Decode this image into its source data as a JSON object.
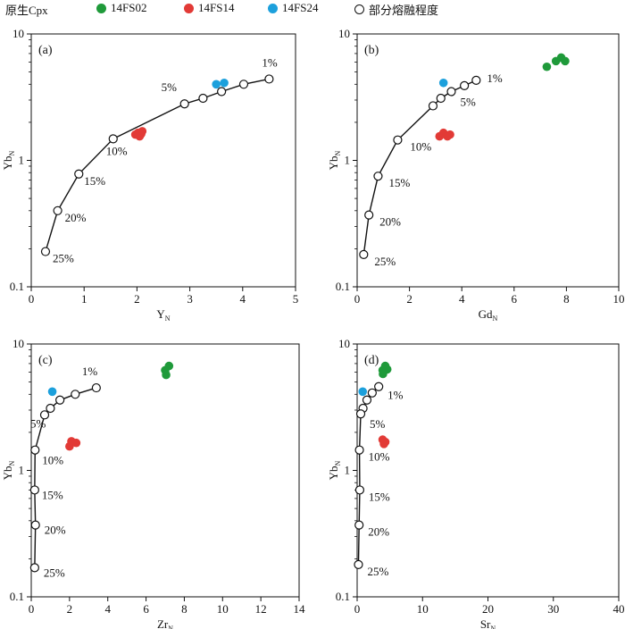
{
  "legend": {
    "cpx_label": "原生Cpx",
    "items": [
      {
        "label": "14FS02",
        "color": "#1f9a3a",
        "marker": "filled-circle"
      },
      {
        "label": "14FS14",
        "color": "#e23a36",
        "marker": "filled-circle"
      },
      {
        "label": "14FS24",
        "color": "#1ca0dc",
        "marker": "filled-circle"
      },
      {
        "label": "部分熔融程度",
        "color": "#111111",
        "marker": "open-circle"
      }
    ]
  },
  "chart_data": [
    {
      "panel": "(a)",
      "type": "scatter",
      "ylog": true,
      "xlabel": "Y",
      "xlabel_sub": "N",
      "ylabel": "Yb",
      "ylabel_sub": "N",
      "xlim": [
        0,
        5
      ],
      "ylim": [
        0.1,
        10
      ],
      "xticks": [
        "0",
        "1",
        "2",
        "3",
        "4",
        "5"
      ],
      "yticks": [
        "0.1",
        "1",
        "10"
      ],
      "melting_curve": {
        "x": [
          4.5,
          4.02,
          3.6,
          3.25,
          2.9,
          1.55,
          0.9,
          0.5,
          0.27
        ],
        "y": [
          4.4,
          4.0,
          3.5,
          3.1,
          2.8,
          1.48,
          0.78,
          0.4,
          0.19
        ],
        "labels": [
          {
            "i": 0,
            "text": "1%"
          },
          {
            "i": 4,
            "text": "5%"
          },
          {
            "i": 5,
            "text": "10%"
          },
          {
            "i": 6,
            "text": "15%"
          },
          {
            "i": 7,
            "text": "20%"
          },
          {
            "i": 8,
            "text": "25%"
          }
        ]
      },
      "series": [
        {
          "name": "14FS02",
          "points": []
        },
        {
          "name": "14FS14",
          "points": [
            [
              1.97,
              1.6
            ],
            [
              2.05,
              1.55
            ],
            [
              2.1,
              1.7
            ],
            [
              2.02,
              1.65
            ],
            [
              2.08,
              1.62
            ]
          ]
        },
        {
          "name": "14FS24",
          "points": [
            [
              3.5,
              4.0
            ],
            [
              3.65,
              4.1
            ]
          ]
        }
      ]
    },
    {
      "panel": "(b)",
      "type": "scatter",
      "ylog": true,
      "xlabel": "Gd",
      "xlabel_sub": "N",
      "ylabel": "Yb",
      "ylabel_sub": "N",
      "xlim": [
        0,
        10
      ],
      "ylim": [
        0.1,
        10
      ],
      "xticks": [
        "0",
        "2",
        "4",
        "6",
        "8",
        "10"
      ],
      "yticks": [
        "0.1",
        "1",
        "10"
      ],
      "melting_curve": {
        "x": [
          4.55,
          4.1,
          3.6,
          3.2,
          2.9,
          1.55,
          0.8,
          0.45,
          0.25
        ],
        "y": [
          4.3,
          3.9,
          3.5,
          3.1,
          2.7,
          1.45,
          0.75,
          0.37,
          0.18
        ],
        "labels": [
          {
            "i": 0,
            "text": "1%"
          },
          {
            "i": 2,
            "text": "5%"
          },
          {
            "i": 5,
            "text": "10%"
          },
          {
            "i": 6,
            "text": "15%"
          },
          {
            "i": 7,
            "text": "20%"
          },
          {
            "i": 8,
            "text": "25%"
          }
        ]
      },
      "series": [
        {
          "name": "14FS02",
          "points": [
            [
              7.25,
              5.5
            ],
            [
              7.6,
              6.1
            ],
            [
              7.8,
              6.5
            ],
            [
              7.95,
              6.1
            ]
          ]
        },
        {
          "name": "14FS14",
          "points": [
            [
              3.15,
              1.55
            ],
            [
              3.3,
              1.65
            ],
            [
              3.45,
              1.55
            ],
            [
              3.55,
              1.6
            ]
          ]
        },
        {
          "name": "14FS24",
          "points": [
            [
              3.3,
              4.1
            ]
          ]
        }
      ]
    },
    {
      "panel": "(c)",
      "type": "scatter",
      "ylog": true,
      "xlabel": "Zr",
      "xlabel_sub": "N",
      "ylabel": "Yb",
      "ylabel_sub": "N",
      "xlim": [
        0,
        14
      ],
      "ylim": [
        0.1,
        10
      ],
      "xticks": [
        "0",
        "2",
        "4",
        "6",
        "8",
        "10",
        "12",
        "14"
      ],
      "yticks": [
        "0.1",
        "1",
        "10"
      ],
      "melting_curve": {
        "x": [
          3.4,
          2.3,
          1.5,
          1.0,
          0.7,
          0.2,
          0.18,
          0.22,
          0.18
        ],
        "y": [
          4.5,
          4.0,
          3.6,
          3.1,
          2.75,
          1.45,
          0.7,
          0.37,
          0.17
        ],
        "labels": [
          {
            "i": 0,
            "text": "1%"
          },
          {
            "i": 4,
            "text": "5%"
          },
          {
            "i": 5,
            "text": "10%"
          },
          {
            "i": 6,
            "text": "15%"
          },
          {
            "i": 7,
            "text": "20%"
          },
          {
            "i": 8,
            "text": "25%"
          }
        ]
      },
      "series": [
        {
          "name": "14FS02",
          "points": [
            [
              7.0,
              6.2
            ],
            [
              7.2,
              6.7
            ],
            [
              7.05,
              5.7
            ]
          ]
        },
        {
          "name": "14FS14",
          "points": [
            [
              2.0,
              1.55
            ],
            [
              2.1,
              1.7
            ],
            [
              2.35,
              1.65
            ]
          ]
        },
        {
          "name": "14FS24",
          "points": [
            [
              1.1,
              4.2
            ]
          ]
        }
      ]
    },
    {
      "panel": "(d)",
      "type": "scatter",
      "ylog": true,
      "xlabel": "Sr",
      "xlabel_sub": "N",
      "ylabel": "Yb",
      "ylabel_sub": "N",
      "xlim": [
        0,
        40
      ],
      "ylim": [
        0.1,
        10
      ],
      "xticks": [
        "0",
        "10",
        "20",
        "30",
        "40"
      ],
      "yticks": [
        "0.1",
        "1",
        "10"
      ],
      "melting_curve": {
        "x": [
          3.3,
          2.3,
          1.5,
          0.9,
          0.55,
          0.35,
          0.4,
          0.3,
          0.2
        ],
        "y": [
          4.6,
          4.1,
          3.6,
          3.1,
          2.8,
          1.45,
          0.7,
          0.37,
          0.18
        ],
        "labels": [
          {
            "i": 0,
            "text": "1%"
          },
          {
            "i": 4,
            "text": "5%"
          },
          {
            "i": 5,
            "text": "10%"
          },
          {
            "i": 6,
            "text": "15%"
          },
          {
            "i": 7,
            "text": "20%"
          },
          {
            "i": 8,
            "text": "25%"
          }
        ]
      },
      "series": [
        {
          "name": "14FS02",
          "points": [
            [
              3.9,
              6.2
            ],
            [
              4.3,
              6.7
            ],
            [
              4.6,
              6.3
            ],
            [
              3.95,
              5.8
            ]
          ]
        },
        {
          "name": "14FS14",
          "points": [
            [
              3.9,
              1.75
            ],
            [
              4.3,
              1.68
            ],
            [
              4.1,
              1.62
            ]
          ]
        },
        {
          "name": "14FS24",
          "points": [
            [
              0.85,
              4.2
            ]
          ]
        }
      ]
    }
  ]
}
